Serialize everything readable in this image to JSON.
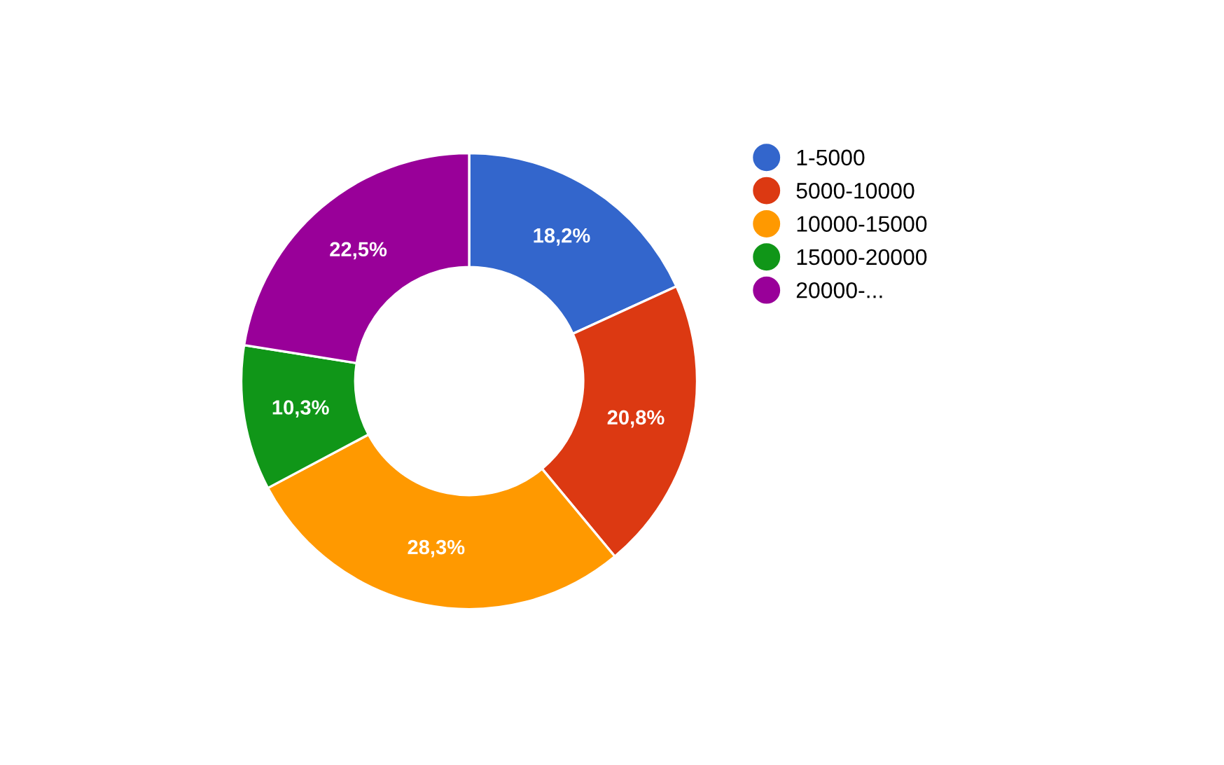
{
  "chart_data": {
    "type": "donut",
    "categories": [
      "1-5000",
      "5000-10000",
      "10000-15000",
      "15000-20000",
      "20000-..."
    ],
    "values": [
      18.2,
      20.8,
      28.3,
      10.3,
      22.5
    ],
    "value_labels": [
      "18,2%",
      "20,8%",
      "28,3%",
      "10,3%",
      "22,5%"
    ],
    "colors": [
      "#3366cc",
      "#dc3912",
      "#ff9900",
      "#109618",
      "#990099"
    ],
    "legend": "right"
  }
}
